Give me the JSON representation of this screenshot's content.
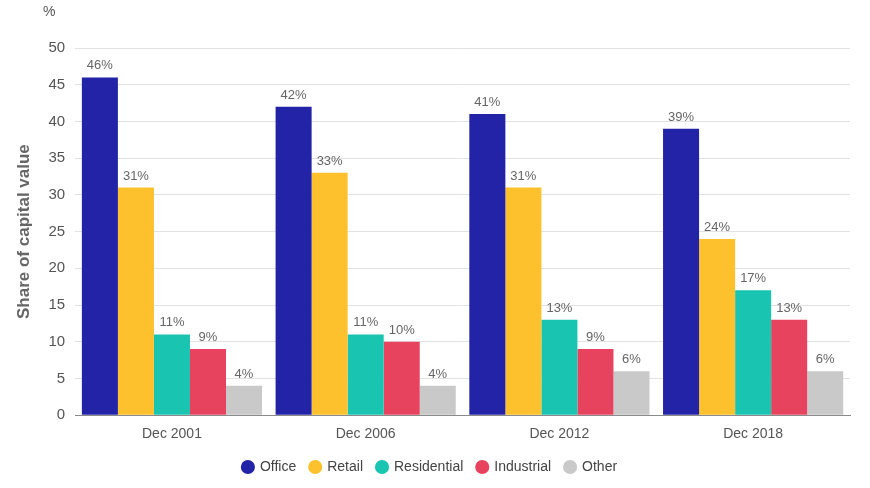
{
  "chart_data": {
    "type": "bar",
    "y_label": "Share of capital value",
    "annotations": [
      {
        "text": "%"
      }
    ],
    "categories": [
      "Dec 2001",
      "Dec 2006",
      "Dec 2012",
      "Dec 2018"
    ],
    "series": [
      {
        "name": "Office",
        "color": "#2323a8",
        "values": [
          46,
          42,
          41,
          39
        ],
        "value_labels": [
          "46%",
          "42%",
          "41%",
          "39%"
        ]
      },
      {
        "name": "Retail",
        "color": "#fdc12e",
        "values": [
          31,
          33,
          31,
          24
        ],
        "value_labels": [
          "31%",
          "33%",
          "31%",
          "24%"
        ]
      },
      {
        "name": "Residential",
        "color": "#19c4b1",
        "values": [
          11,
          11,
          13,
          17
        ],
        "value_labels": [
          "11%",
          "11%",
          "13%",
          "17%"
        ]
      },
      {
        "name": "Industrial",
        "color": "#e8435e",
        "values": [
          9,
          10,
          9,
          13
        ],
        "value_labels": [
          "9%",
          "10%",
          "9%",
          "13%"
        ]
      },
      {
        "name": "Other",
        "color": "#c9c9c9",
        "values": [
          4,
          4,
          6,
          6
        ],
        "value_labels": [
          "4%",
          "4%",
          "6%",
          "6%"
        ]
      }
    ],
    "ylim": [
      0,
      50
    ],
    "yticks": [
      0,
      5,
      10,
      15,
      20,
      25,
      30,
      35,
      40,
      45,
      50
    ],
    "grid": true,
    "legend": "bottom",
    "data_labels": true
  }
}
